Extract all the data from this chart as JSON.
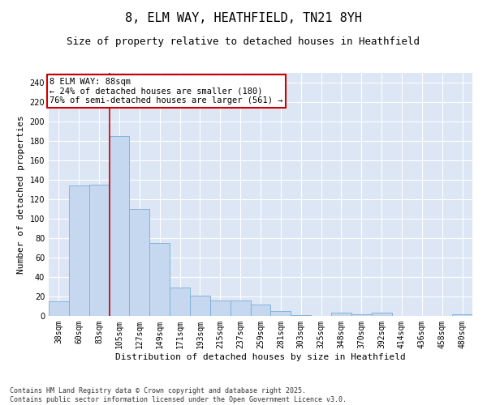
{
  "title": "8, ELM WAY, HEATHFIELD, TN21 8YH",
  "subtitle": "Size of property relative to detached houses in Heathfield",
  "xlabel": "Distribution of detached houses by size in Heathfield",
  "ylabel": "Number of detached properties",
  "categories": [
    "38sqm",
    "60sqm",
    "83sqm",
    "105sqm",
    "127sqm",
    "149sqm",
    "171sqm",
    "193sqm",
    "215sqm",
    "237sqm",
    "259sqm",
    "281sqm",
    "303sqm",
    "325sqm",
    "348sqm",
    "370sqm",
    "392sqm",
    "414sqm",
    "436sqm",
    "458sqm",
    "480sqm"
  ],
  "values": [
    15,
    134,
    135,
    185,
    110,
    75,
    29,
    21,
    16,
    16,
    12,
    5,
    1,
    0,
    3,
    2,
    3,
    0,
    0,
    0,
    2
  ],
  "bar_color": "#c5d8f0",
  "bar_edge_color": "#7aadd4",
  "background_color": "#dce6f5",
  "grid_color": "#ffffff",
  "annotation_line1": "8 ELM WAY: 88sqm",
  "annotation_line2": "← 24% of detached houses are smaller (180)",
  "annotation_line3": "76% of semi-detached houses are larger (561) →",
  "annotation_box_color": "#ffffff",
  "annotation_box_edge": "#cc0000",
  "red_line_x": 2.5,
  "ylim": [
    0,
    250
  ],
  "yticks": [
    0,
    20,
    40,
    60,
    80,
    100,
    120,
    140,
    160,
    180,
    200,
    220,
    240
  ],
  "footnote": "Contains HM Land Registry data © Crown copyright and database right 2025.\nContains public sector information licensed under the Open Government Licence v3.0.",
  "title_fontsize": 11,
  "subtitle_fontsize": 9,
  "xlabel_fontsize": 8,
  "ylabel_fontsize": 8,
  "tick_fontsize": 7,
  "annotation_fontsize": 7.5,
  "footnote_fontsize": 6
}
